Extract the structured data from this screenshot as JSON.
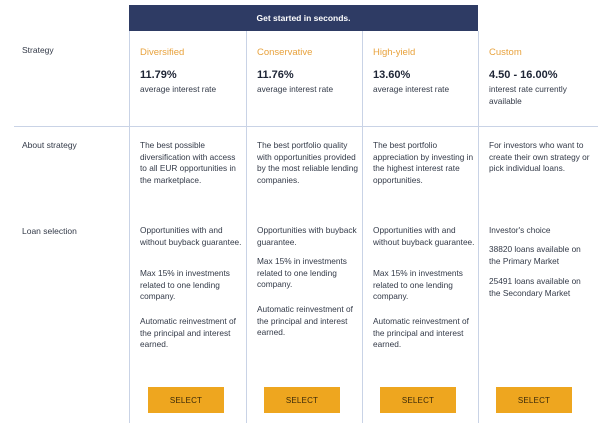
{
  "banner": "Get started in seconds.",
  "row_labels": {
    "strategy": "Strategy",
    "about": "About strategy",
    "loans": "Loan selection"
  },
  "plans": [
    {
      "name": "Diversified",
      "rate": "11.79%",
      "rate_desc": "average interest rate",
      "about": "The best possible diversification with access to all EUR opportunities in the marketplace.",
      "loans": [
        "Opportunities with and without buyback guarantee.",
        "Max 15% in investments related to one lending company.",
        "Automatic reinvestment of the principal and interest earned."
      ],
      "button": "SELECT"
    },
    {
      "name": "Conservative",
      "rate": "11.76%",
      "rate_desc": "average interest rate",
      "about": "The best portfolio quality with opportunities provided by the most reliable lending companies.",
      "loans": [
        "Opportunities with buyback guarantee.",
        "Max 15% in investments related to one lending company.",
        "Automatic reinvestment of the principal and interest earned."
      ],
      "button": "SELECT"
    },
    {
      "name": "High-yield",
      "rate": "13.60%",
      "rate_desc": "average interest rate",
      "about": "The best portfolio appreciation by investing in the highest interest rate opportunities.",
      "loans": [
        "Opportunities with and without buyback guarantee.",
        "Max 15% in investments related to one lending company.",
        "Automatic reinvestment of the principal and interest earned."
      ],
      "button": "SELECT"
    },
    {
      "name": "Custom",
      "rate": "4.50 - 16.00%",
      "rate_desc": "interest rate currently available",
      "about": "For investors who want to create their own strategy or pick individual loans.",
      "loans": [
        "Investor's choice",
        "38820 loans available on the Primary Market",
        "25491 loans available on the Secondary Market"
      ],
      "button": "SELECT"
    }
  ]
}
